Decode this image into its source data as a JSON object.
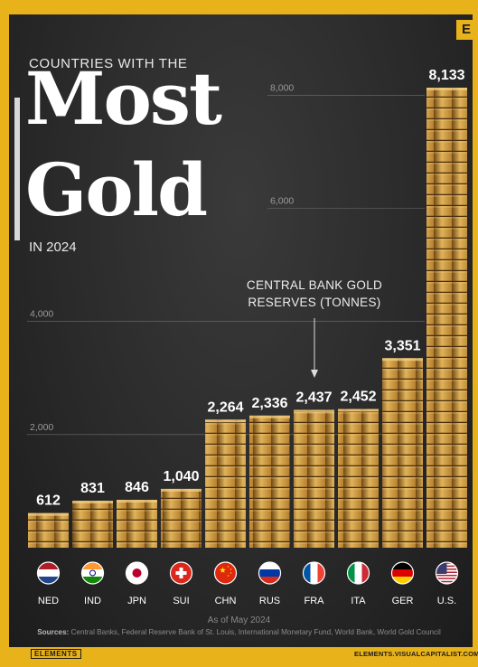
{
  "header": {
    "eyebrow": "COUNTRIES WITH THE",
    "title_line1": "Most",
    "title_line2": "Gold",
    "year_line": "IN 2024",
    "corner_logo": "E"
  },
  "annotation": {
    "line1": "CENTRAL BANK GOLD",
    "line2": "RESERVES (TONNES)"
  },
  "chart_data": {
    "type": "bar",
    "title": "Countries with the Most Gold in 2024",
    "ylabel": "Central Bank Gold Reserves (Tonnes)",
    "ylim": [
      0,
      8133
    ],
    "yticks": [
      2000,
      4000,
      6000,
      8000
    ],
    "ytick_labels": [
      "2,000",
      "4,000",
      "6,000",
      "8,000"
    ],
    "grid": true,
    "categories": [
      "NED",
      "IND",
      "JPN",
      "SUI",
      "CHN",
      "RUS",
      "FRA",
      "ITA",
      "GER",
      "U.S."
    ],
    "values": [
      612,
      831,
      846,
      1040,
      2264,
      2336,
      2437,
      2452,
      3351,
      8133
    ],
    "value_labels": [
      "612",
      "831",
      "846",
      "1,040",
      "2,264",
      "2,336",
      "2,437",
      "2,452",
      "3,351",
      "8,133"
    ],
    "flags": [
      "netherlands-flag-icon",
      "india-flag-icon",
      "japan-flag-icon",
      "switzerland-flag-icon",
      "china-flag-icon",
      "russia-flag-icon",
      "france-flag-icon",
      "italy-flag-icon",
      "germany-flag-icon",
      "usa-flag-icon"
    ],
    "colors": {
      "gold_light": "#e0b35a",
      "gold_mid": "#b7802e",
      "gold_dark": "#6e4714",
      "grid": "#8a8a8a",
      "background": "#2a2a2a",
      "accent": "#e8b21a"
    }
  },
  "footer": {
    "as_of": "As of May 2024",
    "sources_label": "Sources:",
    "sources_text": "Central Banks, Federal Reserve Bank of St. Louis, International Monetary Fund, World Bank, World Gold Council",
    "brand_left": "ELEMENTS",
    "brand_right": "ELEMENTS.VISUALCAPITALIST.COM"
  }
}
